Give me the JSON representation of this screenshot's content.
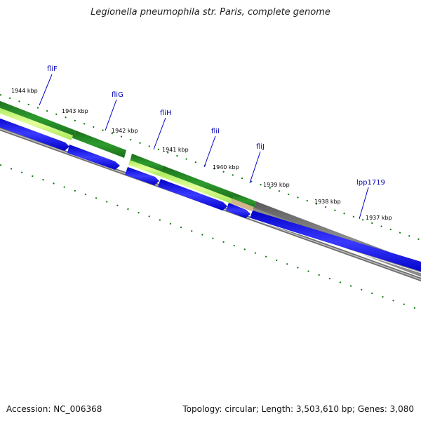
{
  "title": "Legionella pneumophila str. Paris, complete genome",
  "footer": {
    "accession": "Accession: NC_006368",
    "topology": "Topology: circular; Length: 3,503,610 bp; Genes: 3,080"
  },
  "kbp_ticks": [
    "1944 kbp",
    "1943 kbp",
    "1942 kbp",
    "1941 kbp",
    "1940 kbp",
    "1939 kbp",
    "1938 kbp",
    "1937 kbp"
  ],
  "gene_labels": [
    "fliF",
    "fliG",
    "fliH",
    "fliI",
    "fliJ",
    "lpp1719"
  ],
  "colors": {
    "cds_blue": "#0000ff",
    "gc_green_dark": "#1e7d1e",
    "gc_green_light": "#c8ff66",
    "gc_grey": "#6e6e6e",
    "backbone_grey": "#808080",
    "tick_green": "#0a7a0a",
    "label_blue": "#0000b3"
  }
}
